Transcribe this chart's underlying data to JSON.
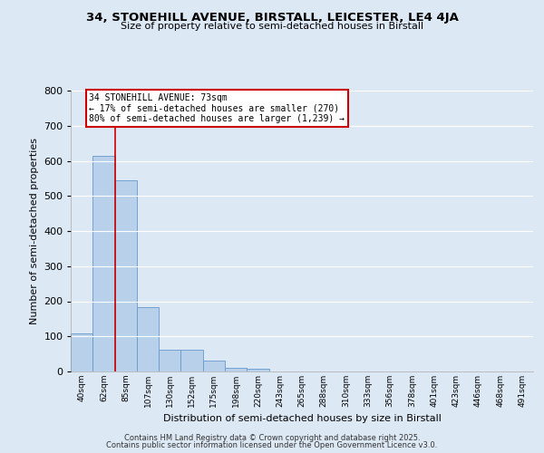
{
  "title1": "34, STONEHILL AVENUE, BIRSTALL, LEICESTER, LE4 4JA",
  "title2": "Size of property relative to semi-detached houses in Birstall",
  "xlabel": "Distribution of semi-detached houses by size in Birstall",
  "ylabel": "Number of semi-detached properties",
  "categories": [
    "40sqm",
    "62sqm",
    "85sqm",
    "107sqm",
    "130sqm",
    "152sqm",
    "175sqm",
    "198sqm",
    "220sqm",
    "243sqm",
    "265sqm",
    "288sqm",
    "310sqm",
    "333sqm",
    "356sqm",
    "378sqm",
    "401sqm",
    "423sqm",
    "446sqm",
    "468sqm",
    "491sqm"
  ],
  "values": [
    108,
    613,
    545,
    183,
    62,
    62,
    30,
    10,
    8,
    0,
    0,
    0,
    0,
    0,
    0,
    0,
    0,
    0,
    0,
    0,
    0
  ],
  "bar_color": "#b8d0ea",
  "bar_edge_color": "#6699cc",
  "bg_color": "#dde8f5",
  "grid_color": "#ffffff",
  "vline_color": "#cc0000",
  "vline_x_idx": 1.5,
  "annotation_title": "34 STONEHILL AVENUE: 73sqm",
  "annotation_line2": "← 17% of semi-detached houses are smaller (270)",
  "annotation_line3": "80% of semi-detached houses are larger (1,239) →",
  "annotation_box_color": "white",
  "annotation_box_edge": "#cc0000",
  "ylim": [
    0,
    800
  ],
  "yticks": [
    0,
    100,
    200,
    300,
    400,
    500,
    600,
    700,
    800
  ],
  "footer1": "Contains HM Land Registry data © Crown copyright and database right 2025.",
  "footer2": "Contains public sector information licensed under the Open Government Licence v3.0."
}
